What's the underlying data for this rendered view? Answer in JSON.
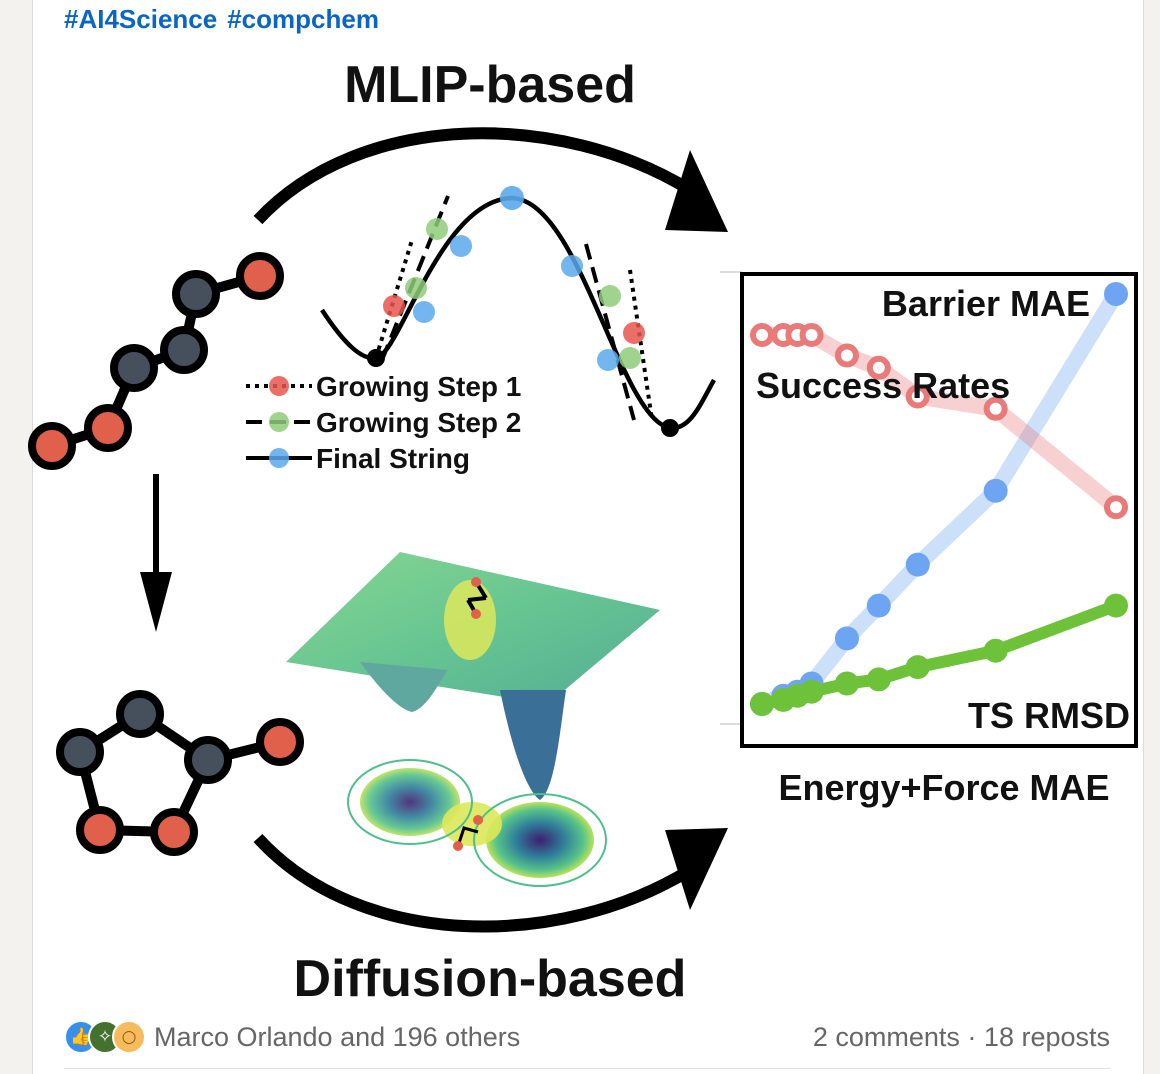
{
  "post": {
    "hashtags": [
      "#AI4Science",
      "#compchem"
    ]
  },
  "figure": {
    "top_title": "MLIP-based",
    "bottom_title": "Diffusion-based",
    "legend": [
      {
        "label": "Growing Step 1",
        "color": "#e8554e",
        "style": "dotted"
      },
      {
        "label": "Growing Step 2",
        "color": "#8fcc7a",
        "style": "dashed"
      },
      {
        "label": "Final String",
        "color": "#5aa8ec",
        "style": "solid"
      }
    ],
    "colors": {
      "atom_dark": "#46505c",
      "atom_red": "#e0604c",
      "barrier_series": "#6ea5f2",
      "success_series": "#e87a7a",
      "rmsd_series": "#6dc23a"
    }
  },
  "chart_data": {
    "type": "line",
    "title": "",
    "xlabel": "Energy+Force MAE",
    "ylabel": "",
    "x": [
      0,
      0.06,
      0.1,
      0.14,
      0.24,
      0.33,
      0.44,
      0.66,
      1.0
    ],
    "series": [
      {
        "name": "Barrier MAE",
        "values": [
          0.0,
          0.02,
          0.03,
          0.05,
          0.16,
          0.24,
          0.34,
          0.52,
          1.0
        ]
      },
      {
        "name": "Success Rates",
        "values": [
          0.9,
          0.9,
          0.9,
          0.9,
          0.85,
          0.82,
          0.75,
          0.72,
          0.48
        ]
      },
      {
        "name": "TS RMSD",
        "values": [
          0.0,
          0.01,
          0.02,
          0.03,
          0.05,
          0.06,
          0.09,
          0.13,
          0.24
        ]
      }
    ],
    "ylim": [
      0,
      1
    ],
    "grid": false
  },
  "social": {
    "reaction_icons": [
      "like-icon",
      "celebrate-icon",
      "insight-icon"
    ],
    "reactors_text": "Marco Orlando and 196 others",
    "comments_text": "2 comments",
    "separator": " · ",
    "reposts_text": "18 reposts"
  }
}
